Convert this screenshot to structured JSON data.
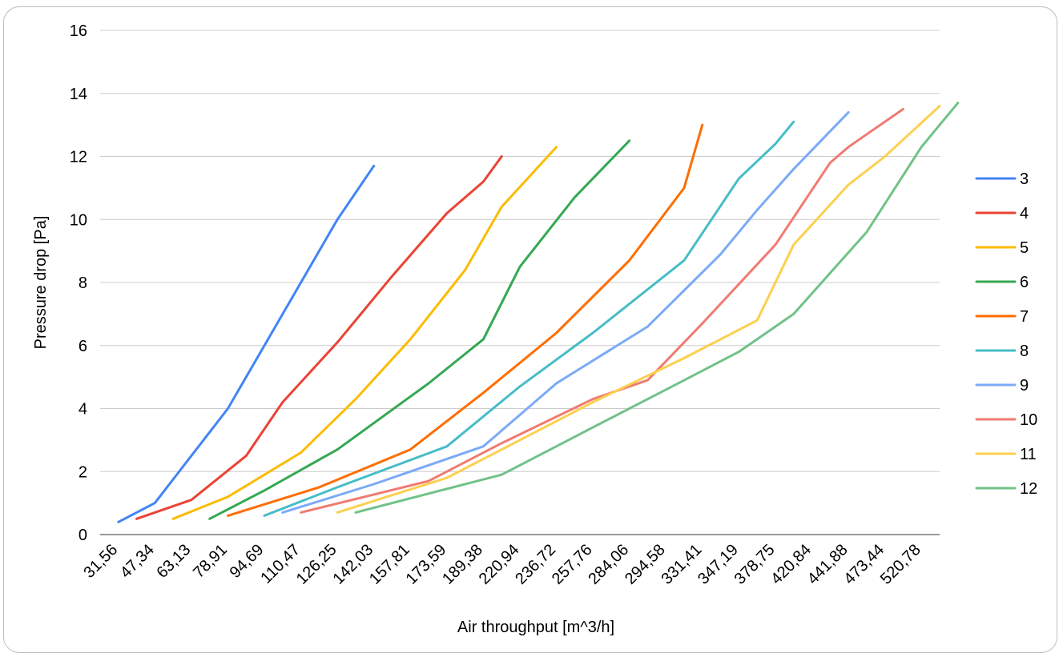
{
  "chart_data": {
    "type": "line",
    "title": "",
    "xlabel": "Air throughput [m^3/h]",
    "ylabel": "Pressure drop [Pa]",
    "categories": [
      "31,56",
      "47,34",
      "63,13",
      "78,91",
      "94,69",
      "110,47",
      "126,25",
      "142,03",
      "157,81",
      "173,59",
      "189,38",
      "220,94",
      "236,72",
      "257,76",
      "284,06",
      "294,58",
      "331,41",
      "347,19",
      "378,75",
      "420,84",
      "441,88",
      "473,44",
      "520,78"
    ],
    "ylim": [
      0,
      16
    ],
    "yticks": [
      0,
      2,
      4,
      6,
      8,
      10,
      12,
      14,
      16
    ],
    "grid": "horizontal",
    "legend_position": "right",
    "series": [
      {
        "name": "3",
        "color": "#4285f4",
        "points": [
          [
            0,
            0.4
          ],
          [
            1,
            1.0
          ],
          [
            3,
            4.0
          ],
          [
            6,
            10.0
          ],
          [
            7,
            11.7
          ]
        ]
      },
      {
        "name": "4",
        "color": "#ea4335",
        "points": [
          [
            0.5,
            0.5
          ],
          [
            2,
            1.1
          ],
          [
            3.5,
            2.5
          ],
          [
            4.5,
            4.2
          ],
          [
            6,
            6.1
          ],
          [
            7.5,
            8.2
          ],
          [
            9,
            10.2
          ],
          [
            10,
            11.2
          ],
          [
            10.5,
            12.0
          ]
        ]
      },
      {
        "name": "5",
        "color": "#fbbc04",
        "points": [
          [
            1.5,
            0.5
          ],
          [
            3,
            1.2
          ],
          [
            5,
            2.6
          ],
          [
            6.5,
            4.3
          ],
          [
            8,
            6.2
          ],
          [
            9.5,
            8.4
          ],
          [
            10.5,
            10.4
          ],
          [
            12,
            12.3
          ]
        ]
      },
      {
        "name": "6",
        "color": "#34a853",
        "points": [
          [
            2.5,
            0.5
          ],
          [
            4,
            1.4
          ],
          [
            6,
            2.7
          ],
          [
            8.5,
            4.8
          ],
          [
            10,
            6.2
          ],
          [
            11,
            8.5
          ],
          [
            12.5,
            10.7
          ],
          [
            14,
            12.5
          ]
        ]
      },
      {
        "name": "7",
        "color": "#ff6d01",
        "points": [
          [
            3,
            0.6
          ],
          [
            5.5,
            1.5
          ],
          [
            8,
            2.7
          ],
          [
            10,
            4.5
          ],
          [
            12,
            6.4
          ],
          [
            14,
            8.7
          ],
          [
            15.5,
            11.0
          ],
          [
            16,
            13.0
          ]
        ]
      },
      {
        "name": "8",
        "color": "#46bdc6",
        "points": [
          [
            4,
            0.6
          ],
          [
            6,
            1.5
          ],
          [
            9,
            2.8
          ],
          [
            11,
            4.7
          ],
          [
            13,
            6.4
          ],
          [
            15.5,
            8.7
          ],
          [
            17,
            11.3
          ],
          [
            18,
            12.4
          ],
          [
            18.5,
            13.1
          ]
        ]
      },
      {
        "name": "9",
        "color": "#7baaf7",
        "points": [
          [
            4.5,
            0.7
          ],
          [
            7,
            1.6
          ],
          [
            10,
            2.8
          ],
          [
            12,
            4.8
          ],
          [
            14.5,
            6.6
          ],
          [
            16.5,
            8.9
          ],
          [
            17.5,
            10.3
          ],
          [
            18.5,
            11.6
          ],
          [
            20,
            13.4
          ]
        ]
      },
      {
        "name": "10",
        "color": "#f07b72",
        "points": [
          [
            5,
            0.7
          ],
          [
            8.5,
            1.7
          ],
          [
            10.5,
            2.9
          ],
          [
            13,
            4.3
          ],
          [
            14.5,
            4.9
          ],
          [
            16,
            6.7
          ],
          [
            18,
            9.2
          ],
          [
            19.5,
            11.8
          ],
          [
            20,
            12.3
          ],
          [
            21.5,
            13.5
          ]
        ]
      },
      {
        "name": "11",
        "color": "#fcd04f",
        "points": [
          [
            6,
            0.7
          ],
          [
            9,
            1.8
          ],
          [
            11,
            3.0
          ],
          [
            13,
            4.2
          ],
          [
            15.5,
            5.6
          ],
          [
            17.5,
            6.8
          ],
          [
            18.5,
            9.2
          ],
          [
            20,
            11.1
          ],
          [
            21,
            12.0
          ],
          [
            22.5,
            13.6
          ]
        ]
      },
      {
        "name": "12",
        "color": "#71c287",
        "points": [
          [
            6.5,
            0.7
          ],
          [
            10.5,
            1.9
          ],
          [
            12.5,
            3.1
          ],
          [
            15,
            4.6
          ],
          [
            17,
            5.8
          ],
          [
            18.5,
            7.0
          ],
          [
            20.5,
            9.6
          ],
          [
            22,
            12.3
          ],
          [
            23,
            13.7
          ]
        ]
      }
    ]
  }
}
